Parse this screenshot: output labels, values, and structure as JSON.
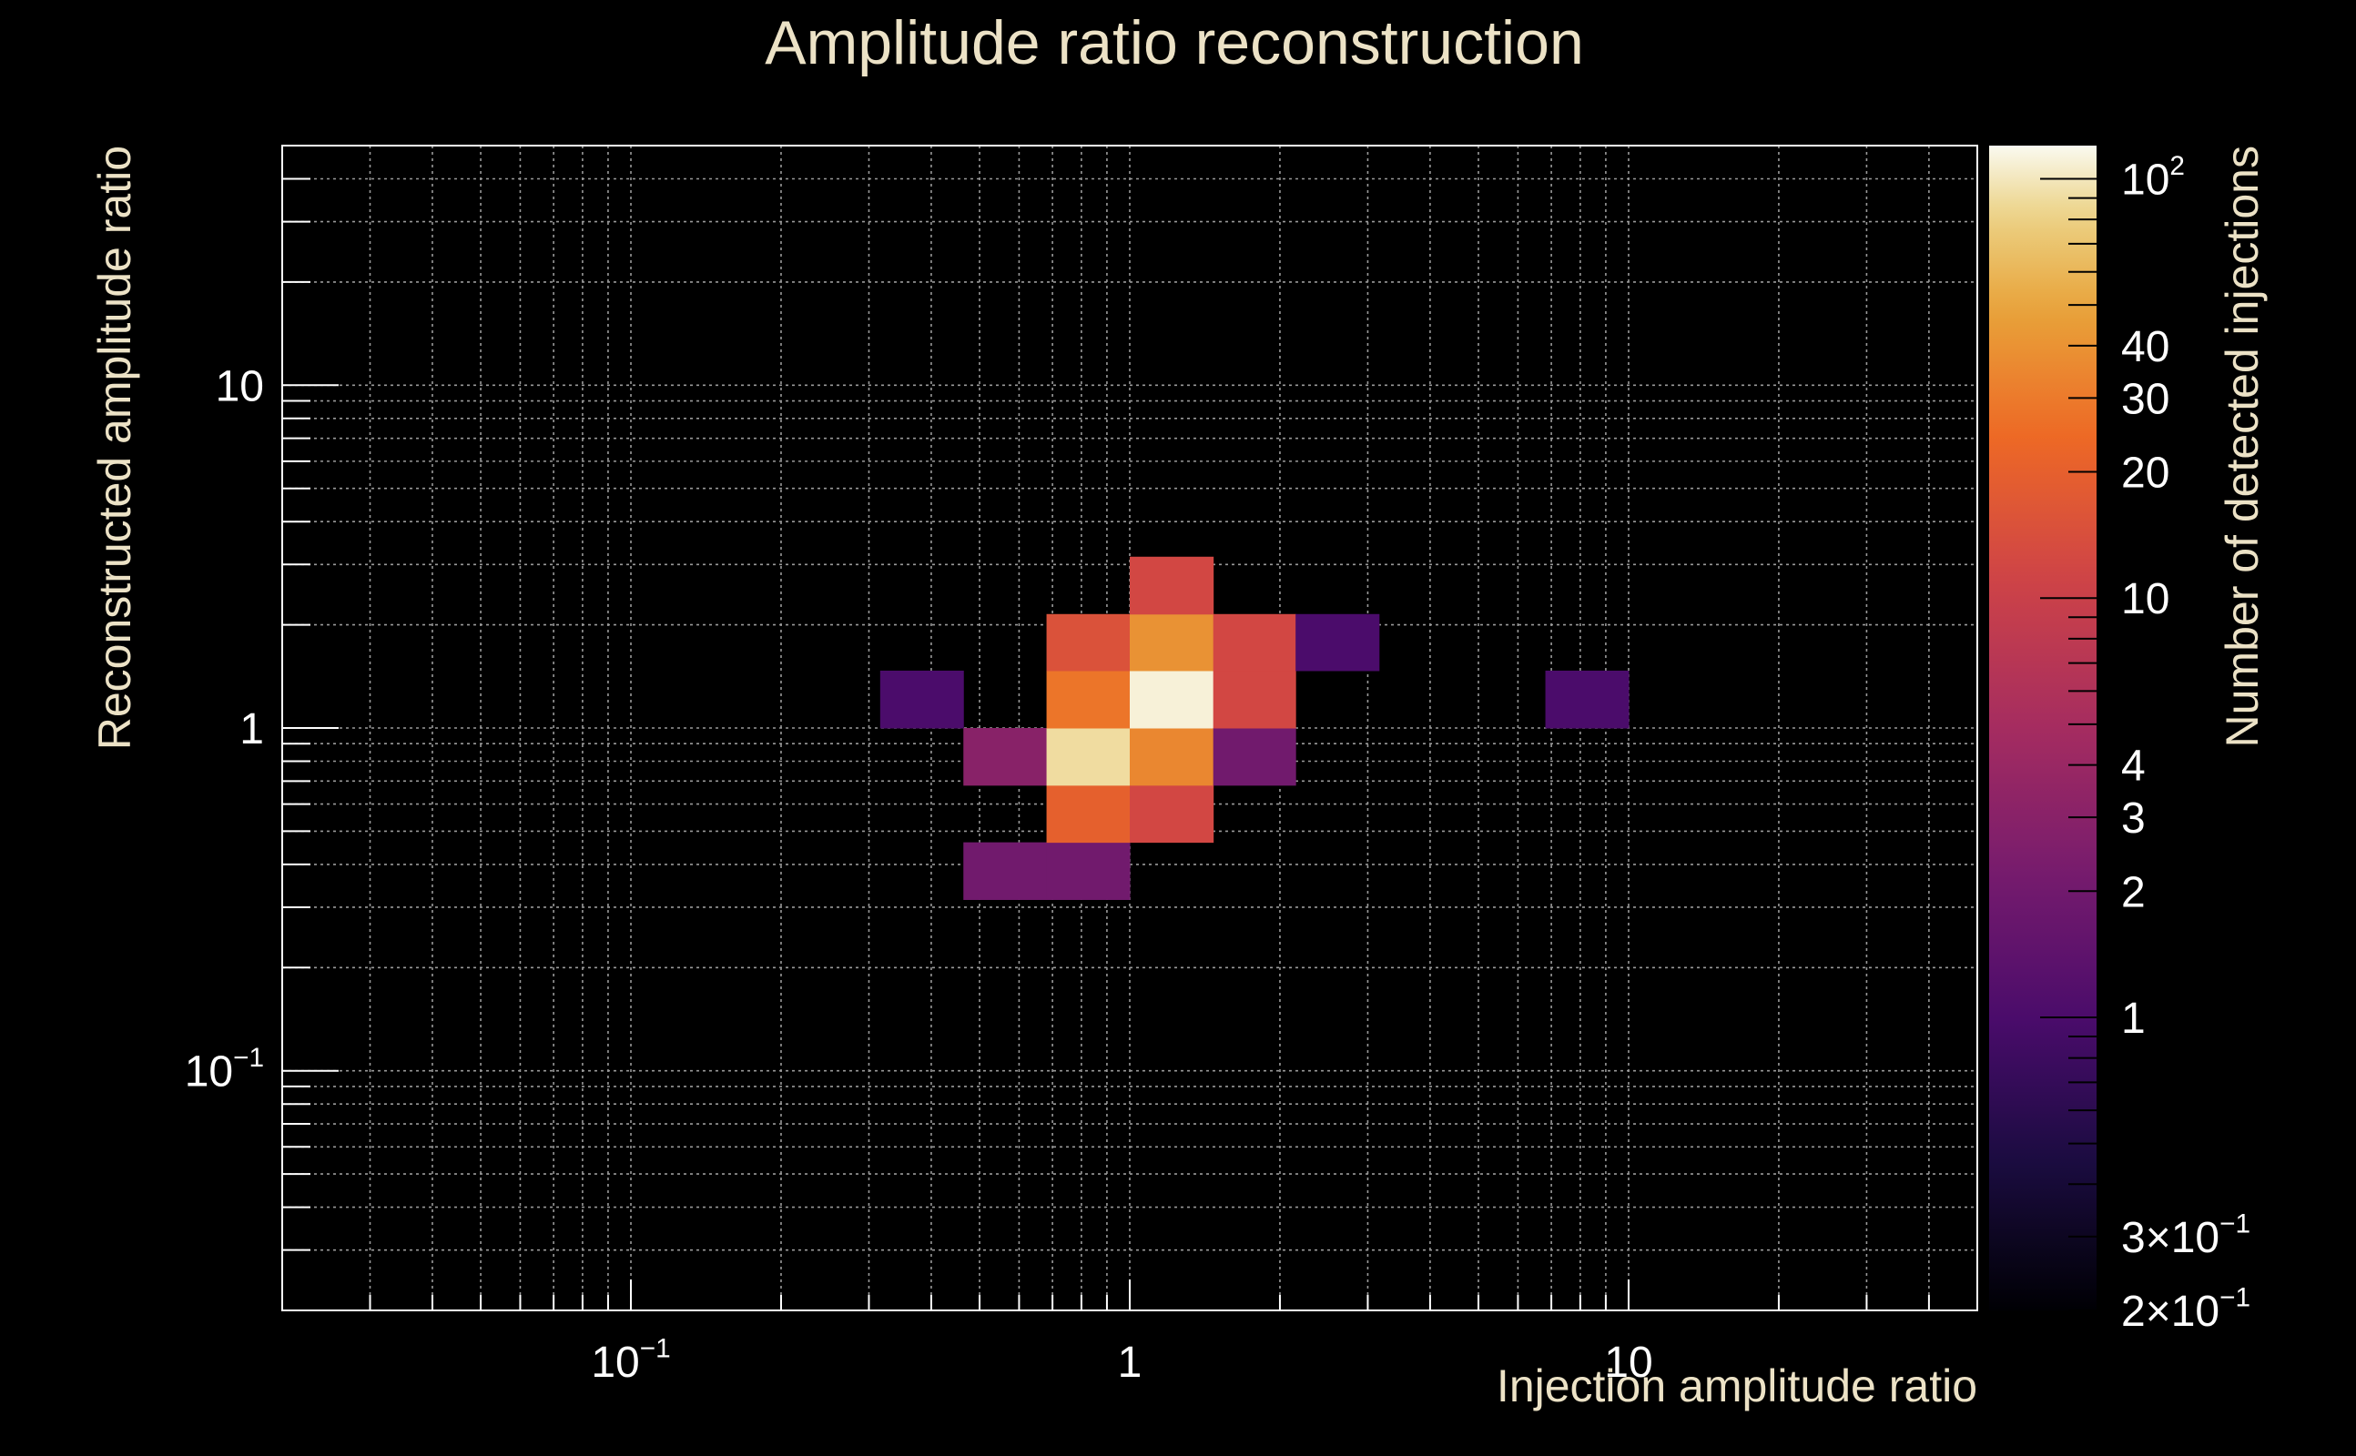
{
  "chart_data": {
    "type": "heatmap",
    "title": "Amplitude ratio reconstruction",
    "xlabel": "Injection amplitude ratio",
    "ylabel": "Reconstructed amplitude ratio",
    "zlabel": "Number of detected injections",
    "x_scale": "log",
    "y_scale": "log",
    "z_scale": "log",
    "xlim": [
      0.02,
      50
    ],
    "ylim": [
      0.02,
      50
    ],
    "zlim": [
      0.2,
      120
    ],
    "grid": true,
    "x_ticks": [
      {
        "value": 0.1,
        "base": "10",
        "exp": "−1"
      },
      {
        "value": 1,
        "base": "1",
        "exp": ""
      },
      {
        "value": 10,
        "base": "10",
        "exp": ""
      }
    ],
    "y_ticks": [
      {
        "value": 0.1,
        "base": "10",
        "exp": "−1"
      },
      {
        "value": 1,
        "base": "1",
        "exp": ""
      },
      {
        "value": 10,
        "base": "10",
        "exp": ""
      }
    ],
    "z_ticks": [
      {
        "value": 100,
        "base": "10",
        "exp": "2"
      },
      {
        "value": 40,
        "base": "40",
        "exp": ""
      },
      {
        "value": 30,
        "base": "30",
        "exp": ""
      },
      {
        "value": 20,
        "base": "20",
        "exp": ""
      },
      {
        "value": 10,
        "base": "10",
        "exp": ""
      },
      {
        "value": 4,
        "base": "4",
        "exp": ""
      },
      {
        "value": 3,
        "base": "3",
        "exp": ""
      },
      {
        "value": 2,
        "base": "2",
        "exp": ""
      },
      {
        "value": 1,
        "base": "1",
        "exp": ""
      },
      {
        "value": 0.3,
        "base": "3×10",
        "exp": "−1"
      },
      {
        "value": 0.2,
        "base": "2×10",
        "exp": "−1"
      }
    ],
    "cells": [
      {
        "x0": 0.316,
        "x1": 0.464,
        "y0": 1.0,
        "y1": 1.47,
        "z": 1
      },
      {
        "x0": 0.464,
        "x1": 0.681,
        "y0": 0.681,
        "y1": 1.0,
        "z": 3
      },
      {
        "x0": 0.464,
        "x1": 0.681,
        "y0": 0.316,
        "y1": 0.464,
        "z": 2
      },
      {
        "x0": 0.681,
        "x1": 1.0,
        "y0": 0.316,
        "y1": 0.464,
        "z": 2
      },
      {
        "x0": 0.681,
        "x1": 1.0,
        "y0": 0.464,
        "y1": 0.681,
        "z": 20
      },
      {
        "x0": 0.681,
        "x1": 1.0,
        "y0": 0.681,
        "y1": 1.0,
        "z": 90
      },
      {
        "x0": 0.681,
        "x1": 1.0,
        "y0": 1.0,
        "y1": 1.47,
        "z": 28
      },
      {
        "x0": 0.681,
        "x1": 1.0,
        "y0": 1.47,
        "y1": 2.15,
        "z": 15
      },
      {
        "x0": 1.0,
        "x1": 1.47,
        "y0": 0.464,
        "y1": 0.681,
        "z": 12
      },
      {
        "x0": 1.0,
        "x1": 1.47,
        "y0": 0.681,
        "y1": 1.0,
        "z": 35
      },
      {
        "x0": 1.0,
        "x1": 1.47,
        "y0": 1.0,
        "y1": 1.47,
        "z": 110
      },
      {
        "x0": 1.0,
        "x1": 1.47,
        "y0": 1.47,
        "y1": 2.15,
        "z": 40
      },
      {
        "x0": 1.0,
        "x1": 1.47,
        "y0": 2.15,
        "y1": 3.16,
        "z": 12
      },
      {
        "x0": 1.47,
        "x1": 2.15,
        "y0": 0.681,
        "y1": 1.0,
        "z": 2
      },
      {
        "x0": 1.47,
        "x1": 2.15,
        "y0": 1.0,
        "y1": 1.47,
        "z": 12
      },
      {
        "x0": 1.47,
        "x1": 2.15,
        "y0": 1.47,
        "y1": 2.15,
        "z": 12
      },
      {
        "x0": 2.15,
        "x1": 3.16,
        "y0": 1.47,
        "y1": 2.15,
        "z": 1
      },
      {
        "x0": 6.81,
        "x1": 10.0,
        "y0": 1.0,
        "y1": 1.47,
        "z": 1
      }
    ],
    "colormap": [
      {
        "t": 0.0,
        "color": "#000004"
      },
      {
        "t": 0.13,
        "color": "#1b0c41"
      },
      {
        "t": 0.25,
        "color": "#4a0c6b"
      },
      {
        "t": 0.38,
        "color": "#781c6d"
      },
      {
        "t": 0.5,
        "color": "#a52c60"
      },
      {
        "t": 0.63,
        "color": "#cf4446"
      },
      {
        "t": 0.75,
        "color": "#ed6925"
      },
      {
        "t": 0.86,
        "color": "#e8a33a"
      },
      {
        "t": 0.94,
        "color": "#ecd285"
      },
      {
        "t": 1.0,
        "color": "#fafaf0"
      }
    ],
    "colors": {
      "background": "#000000",
      "title_text": "#ece2c6",
      "tick_text": "#ffffff",
      "frame": "#ffffff",
      "grid": "#9a9a9a"
    }
  }
}
